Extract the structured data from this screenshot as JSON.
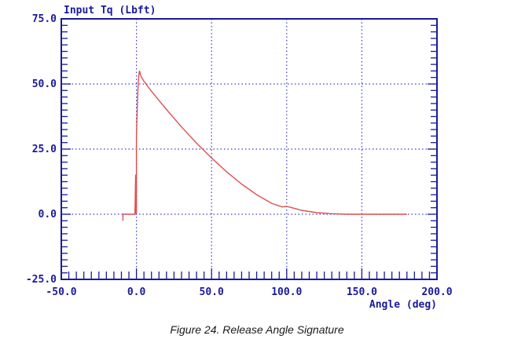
{
  "chart_data": {
    "type": "line",
    "title": "Input Tq (Lbft)",
    "xlabel": "Angle (deg)",
    "ylabel": "Input Tq (Lbft)",
    "xlim": [
      -50,
      200
    ],
    "ylim": [
      -25,
      75
    ],
    "x_tick_labels": [
      "-50.0",
      "0.0",
      "50.0",
      "100.0",
      "150.0",
      "200.0"
    ],
    "y_tick_labels": [
      "75.0",
      "50.0",
      "25.0",
      "0.0",
      "-25.0"
    ],
    "x_ticks": [
      -50,
      0,
      50,
      100,
      150,
      200
    ],
    "y_ticks": [
      75,
      50,
      25,
      0,
      -25
    ],
    "grid": true,
    "series": [
      {
        "name": "",
        "color": "#e05050",
        "points": [
          [
            -9,
            -2.5
          ],
          [
            -9,
            0
          ],
          [
            -1,
            0
          ],
          [
            -0.5,
            15
          ],
          [
            -0.3,
            0.5
          ],
          [
            0,
            0.5
          ],
          [
            0,
            30
          ],
          [
            0.5,
            40
          ],
          [
            1,
            48
          ],
          [
            1.5,
            53
          ],
          [
            2,
            55
          ],
          [
            2.3,
            54.5
          ],
          [
            3,
            53
          ],
          [
            5,
            51
          ],
          [
            10,
            47.2
          ],
          [
            20,
            40.2
          ],
          [
            30,
            33.5
          ],
          [
            40,
            27.3
          ],
          [
            50,
            21.6
          ],
          [
            60,
            16.3
          ],
          [
            70,
            11.6
          ],
          [
            80,
            7.5
          ],
          [
            90,
            4.2
          ],
          [
            97,
            2.8
          ],
          [
            100,
            3.0
          ],
          [
            103,
            2.6
          ],
          [
            110,
            1.5
          ],
          [
            120,
            0.6
          ],
          [
            130,
            0.2
          ],
          [
            140,
            0
          ],
          [
            150,
            0
          ],
          [
            160,
            0
          ],
          [
            170,
            0
          ],
          [
            180,
            0
          ]
        ]
      }
    ]
  },
  "caption": "Figure 24. Release Angle Signature",
  "colors": {
    "axis": "#1a1a9a",
    "grid": "#3a3ad0",
    "text": "#1a1a9a",
    "line": "#e05050"
  }
}
